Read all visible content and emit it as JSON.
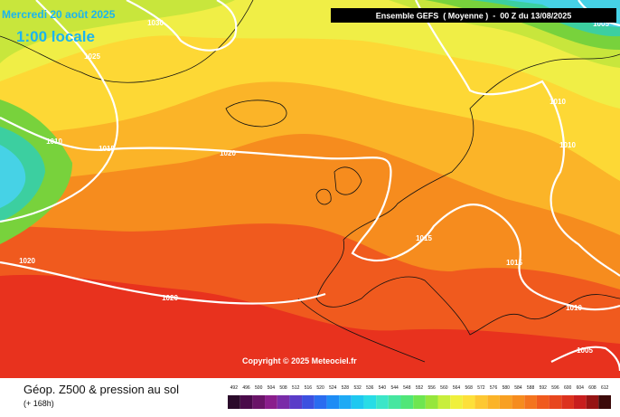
{
  "header": {
    "date": "Mercredi 20 août 2025",
    "time": "1:00 locale",
    "run": "Ensemble GEFS  ( Moyenne )  -  00 Z du 13/08/2025"
  },
  "copyright": "Copyright © 2025 Meteociel.fr",
  "footer": {
    "title": "Géop. Z500 & pression au sol",
    "lead": "(+ 168h)"
  },
  "isobar_labels": [
    "1030",
    "1025",
    "1010",
    "1015",
    "1020",
    "1020",
    "1020",
    "1015",
    "1015",
    "1010",
    "1010",
    "1010",
    "1005",
    "1005"
  ],
  "colorbar": {
    "labels": [
      "492",
      "496",
      "500",
      "504",
      "508",
      "512",
      "516",
      "520",
      "524",
      "528",
      "532",
      "536",
      "540",
      "544",
      "548",
      "552",
      "556",
      "560",
      "564",
      "568",
      "572",
      "576",
      "580",
      "584",
      "588",
      "592",
      "596",
      "600",
      "604",
      "608",
      "612"
    ],
    "colors": [
      "#2a0a2a",
      "#4a0a4a",
      "#6a1468",
      "#8a1e8c",
      "#7a2ca8",
      "#5a3cc8",
      "#3c50e0",
      "#2a6cf0",
      "#1e8cf5",
      "#1eaaf5",
      "#1ec8f0",
      "#28dce6",
      "#3ce6c8",
      "#46e6a0",
      "#50e678",
      "#6ee650",
      "#96e63c",
      "#c8ee3c",
      "#f0f03c",
      "#fde03a",
      "#fdc832",
      "#fbb428",
      "#f8a022",
      "#f68c1e",
      "#f4741e",
      "#f05a1e",
      "#e8461e",
      "#dc321e",
      "#c81e1e",
      "#961414",
      "#3c0a0a"
    ]
  }
}
